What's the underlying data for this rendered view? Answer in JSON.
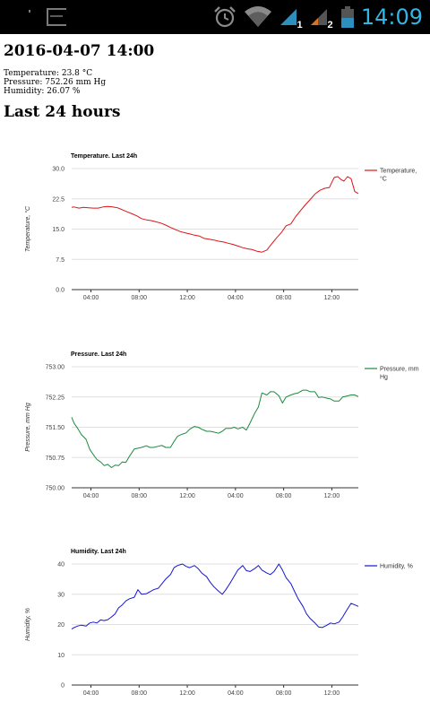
{
  "status_bar": {
    "time": "14:09",
    "sim1_label": "1",
    "sim2_label": "2",
    "icons": [
      "notification-icon",
      "alarm-icon",
      "wifi-icon",
      "signal-sim1-icon",
      "signal-sim2-icon",
      "battery-icon"
    ],
    "time_color": "#33b5e5"
  },
  "header": {
    "datetime": "2016-04-07 14:00",
    "temperature": "Temperature: 23.8 °C",
    "pressure": "Pressure: 752.26 mm Hg",
    "humidity": "Humidity: 26.07 %",
    "section_title": "Last 24 hours"
  },
  "chart_data": [
    {
      "type": "line",
      "title": "Temperature. Last 24h",
      "ylabel": "Temperature, °C",
      "xlabel": "",
      "ylim": [
        0,
        30
      ],
      "yticks": [
        "0.0",
        "7.5",
        "15.0",
        "22.5",
        "30.0"
      ],
      "xticks": [
        "04:00",
        "08:00",
        "12:00",
        "04:00",
        "08:00",
        "12:00"
      ],
      "xtick_positions": [
        2.4,
        6.4,
        10.4,
        14.4,
        18.4,
        22.4
      ],
      "x_range": [
        0.8,
        24.6
      ],
      "legend": "right",
      "grid": true,
      "series": [
        {
          "name": "Temperature, °C",
          "color": "#dc1515",
          "x": [
            0.8,
            1.0,
            1.4,
            1.8,
            2.2,
            2.6,
            3.0,
            3.4,
            3.8,
            4.2,
            4.6,
            5.0,
            5.4,
            5.8,
            6.2,
            6.6,
            7.0,
            7.4,
            7.8,
            8.2,
            8.6,
            9.0,
            9.4,
            9.8,
            10.2,
            10.6,
            11.0,
            11.4,
            11.8,
            12.2,
            12.6,
            13.0,
            13.4,
            13.8,
            14.2,
            14.6,
            15.0,
            15.4,
            15.8,
            16.2,
            16.6,
            17.0,
            17.4,
            17.8,
            18.2,
            18.6,
            19.0,
            19.4,
            19.8,
            20.2,
            20.6,
            21.0,
            21.4,
            21.8,
            22.2,
            22.4,
            22.6,
            22.9,
            23.2,
            23.4,
            23.7,
            24.0,
            24.3,
            24.6
          ],
          "values": [
            20.4,
            20.5,
            20.2,
            20.4,
            20.3,
            20.2,
            20.2,
            20.5,
            20.6,
            20.5,
            20.3,
            19.8,
            19.3,
            18.8,
            18.3,
            17.6,
            17.3,
            17.1,
            16.8,
            16.5,
            16.0,
            15.4,
            14.9,
            14.4,
            14.1,
            13.8,
            13.5,
            13.3,
            12.7,
            12.5,
            12.3,
            12.0,
            11.8,
            11.5,
            11.2,
            10.8,
            10.4,
            10.1,
            9.9,
            9.5,
            9.3,
            9.8,
            11.3,
            12.8,
            14.1,
            15.8,
            16.3,
            18.1,
            19.6,
            21.0,
            22.3,
            23.7,
            24.6,
            25.1,
            25.3,
            26.6,
            27.8,
            28.0,
            27.2,
            26.9,
            28.0,
            27.5,
            24.3,
            23.8
          ]
        }
      ]
    },
    {
      "type": "line",
      "title": "Pressure. Last 24h",
      "ylabel": "Pressure, mm Hg",
      "xlabel": "",
      "ylim": [
        750,
        753
      ],
      "yticks": [
        "750.00",
        "750.75",
        "751.50",
        "752.25",
        "753.00"
      ],
      "xticks": [
        "04:00",
        "08:00",
        "12:00",
        "04:00",
        "08:00",
        "12:00"
      ],
      "xtick_positions": [
        2.4,
        6.4,
        10.4,
        14.4,
        18.4,
        22.4
      ],
      "x_range": [
        0.8,
        24.6
      ],
      "legend": "right",
      "grid": true,
      "series": [
        {
          "name": "Pressure, mm Hg",
          "color": "#1b8a3e",
          "x": [
            0.8,
            1.0,
            1.3,
            1.6,
            2.0,
            2.3,
            2.6,
            2.9,
            3.2,
            3.5,
            3.8,
            4.1,
            4.4,
            4.7,
            5.0,
            5.3,
            5.6,
            6.0,
            6.3,
            6.6,
            7.0,
            7.3,
            7.6,
            8.0,
            8.3,
            8.6,
            9.0,
            9.3,
            9.6,
            10.0,
            10.3,
            10.6,
            11.0,
            11.3,
            11.6,
            12.0,
            12.3,
            12.6,
            13.0,
            13.3,
            13.6,
            14.0,
            14.3,
            14.6,
            15.0,
            15.3,
            15.6,
            16.0,
            16.3,
            16.6,
            17.0,
            17.3,
            17.6,
            18.0,
            18.3,
            18.6,
            19.0,
            19.3,
            19.6,
            20.0,
            20.3,
            20.6,
            21.0,
            21.3,
            21.6,
            22.0,
            22.3,
            22.6,
            23.0,
            23.3,
            23.6,
            24.0,
            24.3,
            24.6
          ],
          "values": [
            751.75,
            751.6,
            751.47,
            751.32,
            751.2,
            750.95,
            750.82,
            750.7,
            750.64,
            750.55,
            750.58,
            750.5,
            750.56,
            750.55,
            750.64,
            750.63,
            750.78,
            750.96,
            750.98,
            751.0,
            751.04,
            751.0,
            751.0,
            751.03,
            751.05,
            751.0,
            751.0,
            751.15,
            751.28,
            751.33,
            751.36,
            751.45,
            751.52,
            751.5,
            751.45,
            751.4,
            751.4,
            751.38,
            751.35,
            751.4,
            751.47,
            751.47,
            751.5,
            751.46,
            751.5,
            751.43,
            751.6,
            751.85,
            752.0,
            752.35,
            752.3,
            752.38,
            752.38,
            752.28,
            752.1,
            752.25,
            752.3,
            752.33,
            752.35,
            752.42,
            752.42,
            752.38,
            752.38,
            752.24,
            752.25,
            752.22,
            752.2,
            752.15,
            752.15,
            752.25,
            752.27,
            752.3,
            752.3,
            752.26
          ]
        }
      ]
    },
    {
      "type": "line",
      "title": "Humidity. Last 24h",
      "ylabel": "Humidity, %",
      "xlabel": "",
      "ylim": [
        0,
        40
      ],
      "yticks": [
        "0",
        "10",
        "20",
        "30",
        "40"
      ],
      "xticks": [
        "04:00",
        "08:00",
        "12:00",
        "04:00",
        "08:00",
        "12:00"
      ],
      "xtick_positions": [
        2.4,
        6.4,
        10.4,
        14.4,
        18.4,
        22.4
      ],
      "x_range": [
        0.8,
        24.6
      ],
      "legend": "right",
      "grid": true,
      "series": [
        {
          "name": "Humidity, %",
          "color": "#1515d8",
          "x": [
            0.8,
            1.0,
            1.3,
            1.6,
            2.0,
            2.3,
            2.6,
            2.9,
            3.2,
            3.5,
            3.8,
            4.1,
            4.4,
            4.7,
            5.0,
            5.3,
            5.6,
            6.0,
            6.3,
            6.6,
            7.0,
            7.3,
            7.6,
            8.0,
            8.3,
            8.6,
            9.0,
            9.3,
            9.6,
            10.0,
            10.3,
            10.6,
            11.0,
            11.3,
            11.6,
            12.0,
            12.3,
            12.6,
            13.0,
            13.3,
            13.6,
            14.0,
            14.3,
            14.6,
            15.0,
            15.3,
            15.6,
            16.0,
            16.3,
            16.6,
            17.0,
            17.3,
            17.6,
            18.0,
            18.3,
            18.6,
            19.0,
            19.3,
            19.6,
            20.0,
            20.3,
            20.6,
            21.0,
            21.3,
            21.6,
            22.0,
            22.3,
            22.6,
            23.0,
            23.3,
            23.6,
            24.0,
            24.3,
            24.6
          ],
          "values": [
            18.5,
            19.0,
            19.5,
            19.8,
            19.5,
            20.5,
            20.8,
            20.5,
            21.5,
            21.3,
            21.6,
            22.5,
            23.5,
            25.5,
            26.5,
            27.8,
            28.5,
            29.0,
            31.5,
            30.0,
            30.2,
            30.8,
            31.5,
            32.0,
            33.5,
            35.0,
            36.5,
            38.8,
            39.5,
            40.0,
            39.2,
            38.8,
            39.5,
            38.5,
            37.0,
            35.8,
            34.0,
            32.5,
            31.0,
            30.0,
            31.5,
            34.0,
            36.0,
            38.0,
            39.5,
            37.8,
            37.5,
            38.5,
            39.5,
            38.0,
            37.0,
            36.5,
            37.5,
            40.0,
            38.0,
            35.5,
            33.5,
            31.0,
            28.5,
            26.0,
            23.5,
            22.0,
            20.5,
            19.2,
            19.0,
            19.8,
            20.5,
            20.2,
            20.8,
            22.5,
            24.5,
            27.0,
            26.5,
            26.0
          ]
        }
      ]
    }
  ]
}
